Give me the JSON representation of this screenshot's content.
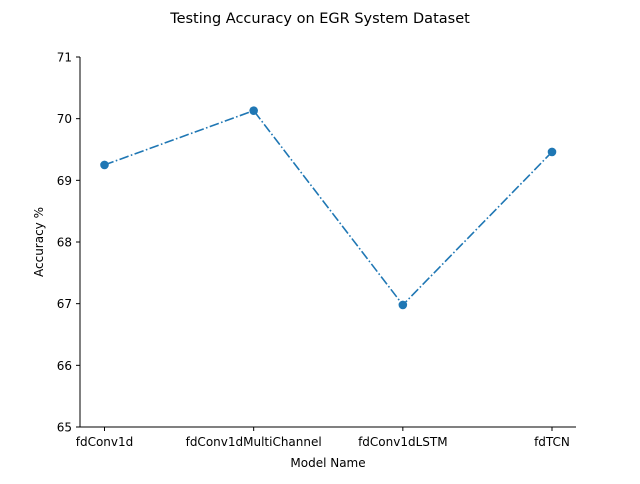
{
  "chart_data": {
    "type": "line",
    "title": "Testing Accuracy on EGR System Dataset",
    "xlabel": "Model Name",
    "ylabel": "Accuracy %",
    "categories": [
      "fdConv1d",
      "fdConv1dMultiChannel",
      "fdConv1dLSTM",
      "fdTCN"
    ],
    "series": [
      {
        "values": [
          69.25,
          70.13,
          66.98,
          69.46
        ]
      }
    ],
    "ylim": [
      65,
      71
    ],
    "yticks": [
      "65",
      "66",
      "67",
      "68",
      "69",
      "70",
      "71"
    ],
    "line_style": "dash-dot",
    "markers": "circle",
    "grid": false,
    "legend": "none",
    "colors": {
      "series": "#1f77b4",
      "axis": "#000000",
      "background": "#ffffff"
    }
  }
}
